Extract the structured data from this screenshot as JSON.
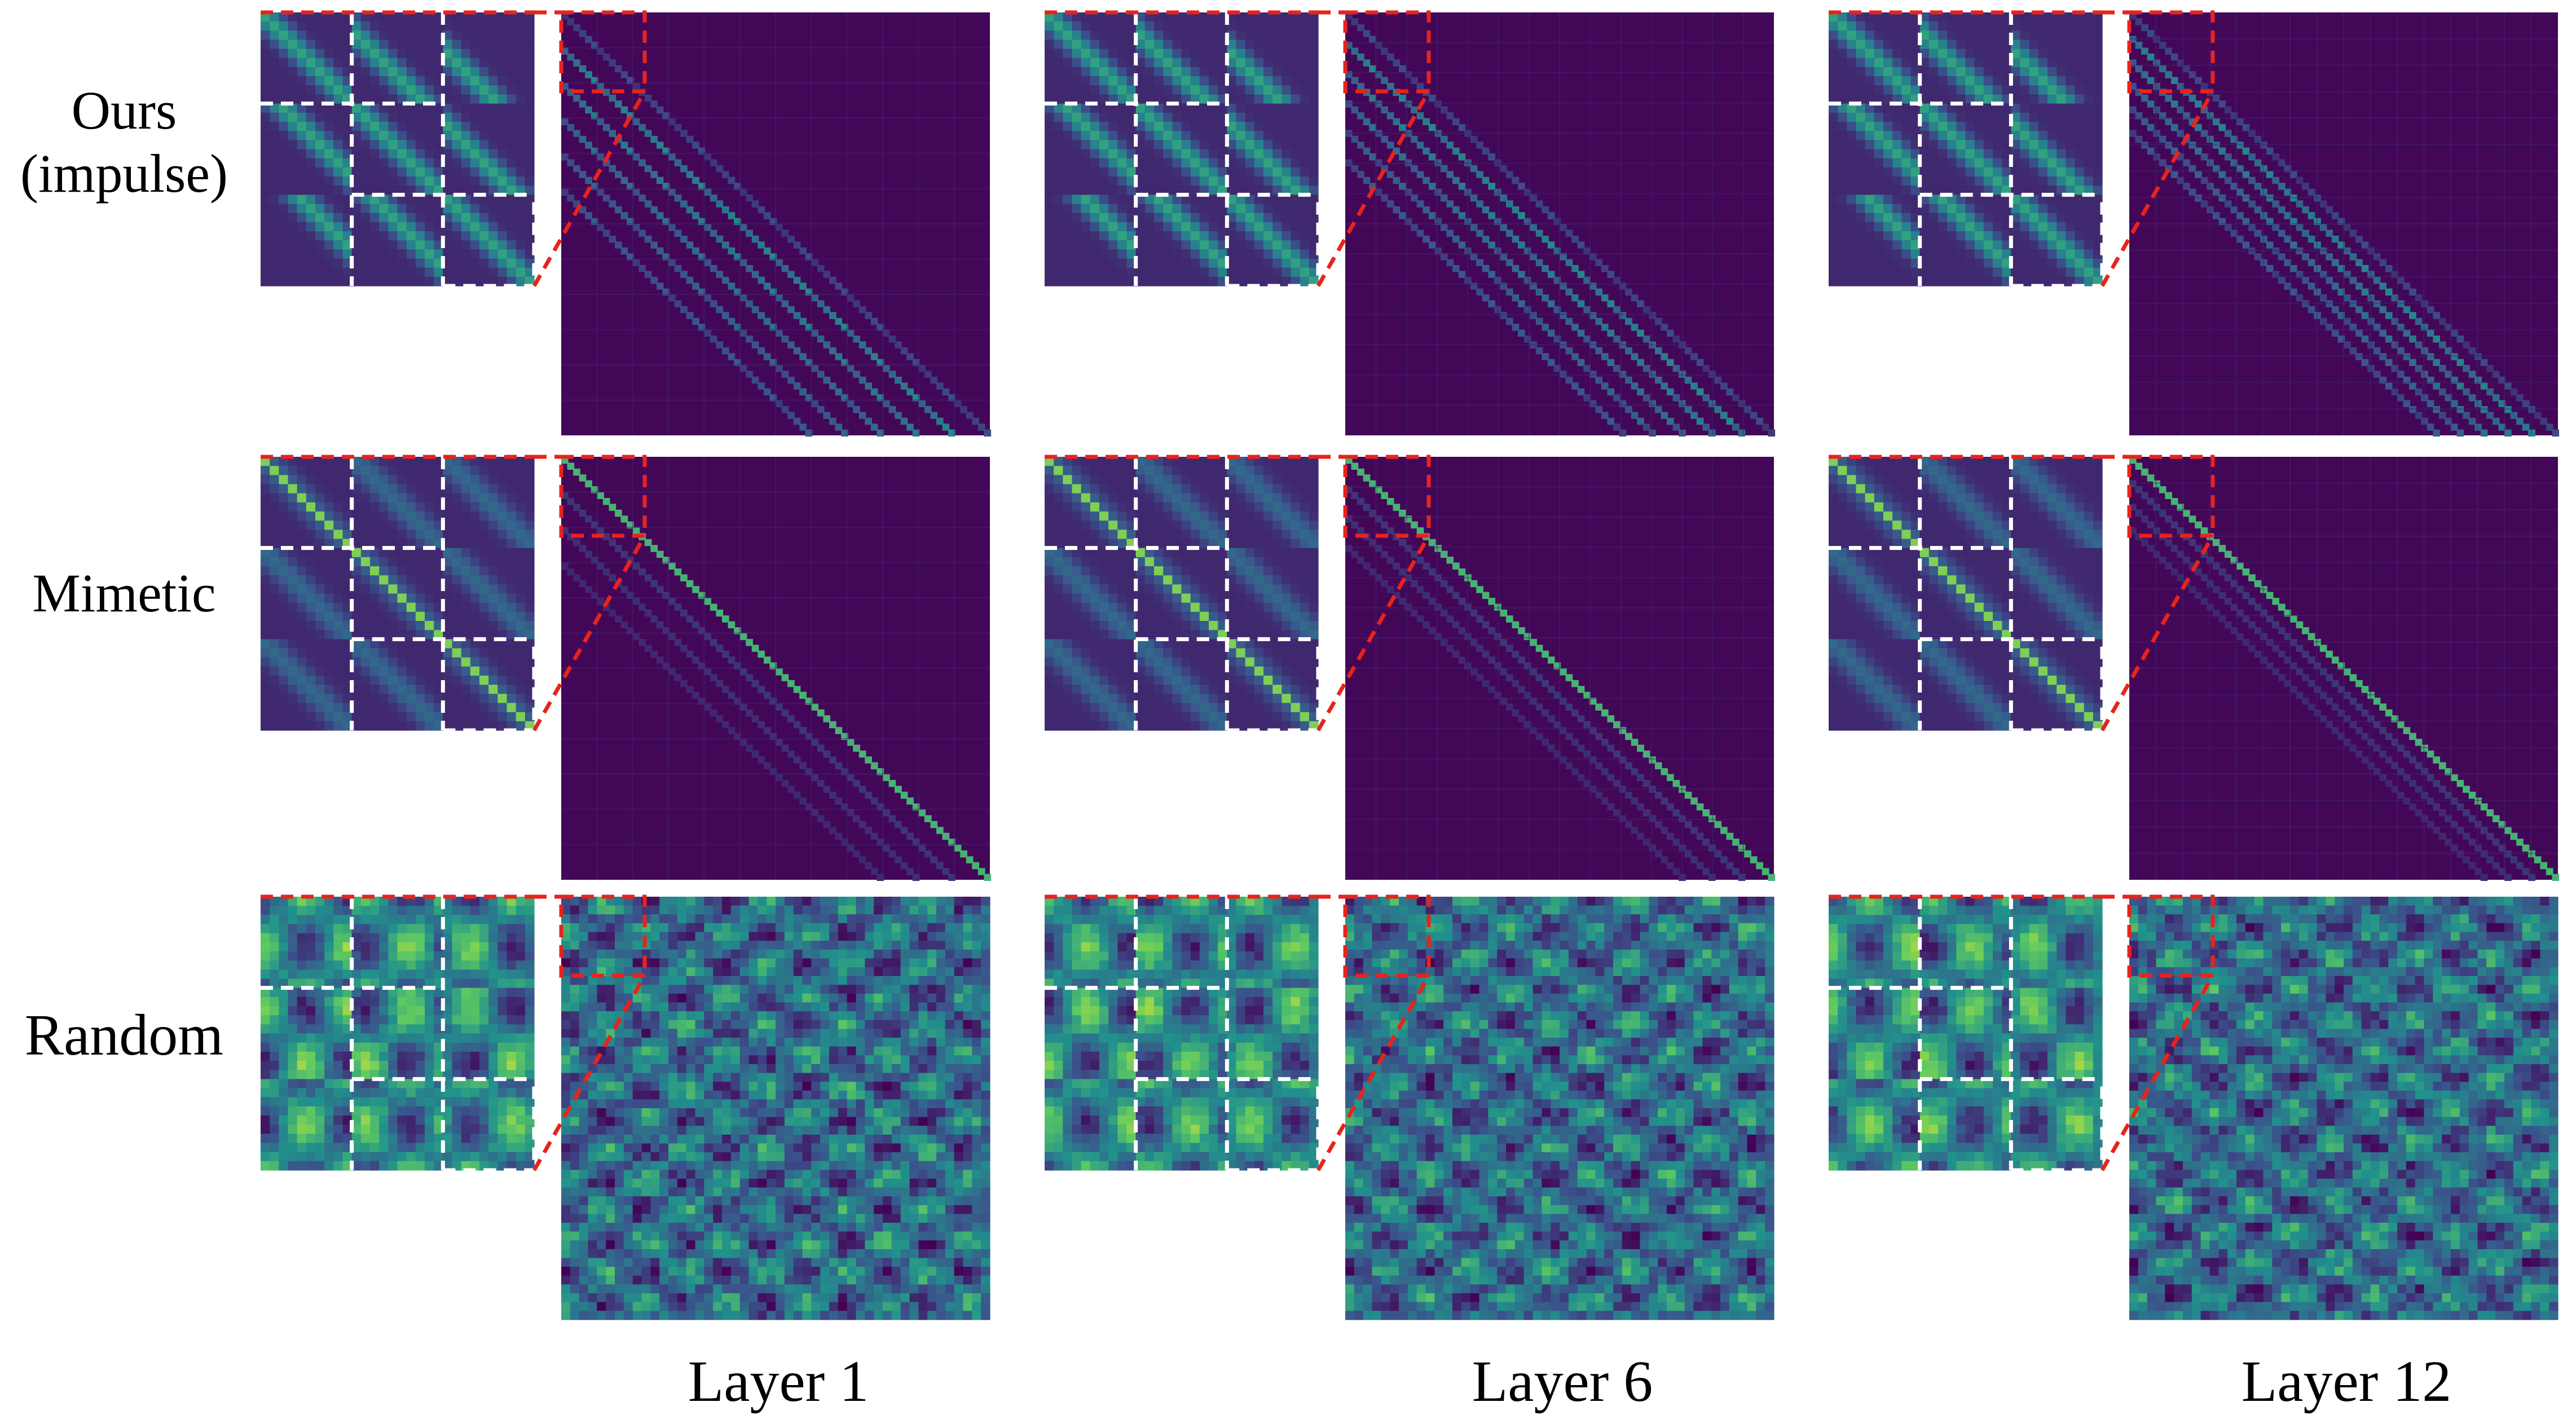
{
  "figure": {
    "row_labels": [
      {
        "lines": [
          "Ours",
          "(impulse)"
        ],
        "pattern": "impulse"
      },
      {
        "lines": [
          "Mimetic"
        ],
        "pattern": "mimetic"
      },
      {
        "lines": [
          "Random"
        ],
        "pattern": "random"
      }
    ],
    "column_labels": [
      "Layer 1",
      "Layer 6",
      "Layer 12"
    ],
    "colormap": [
      "#440154",
      "#3b528b",
      "#21918c",
      "#5ec962",
      "#fde725"
    ],
    "zoom_box_color": "#e8231c",
    "grid_line_color": "#ffffff"
  }
}
